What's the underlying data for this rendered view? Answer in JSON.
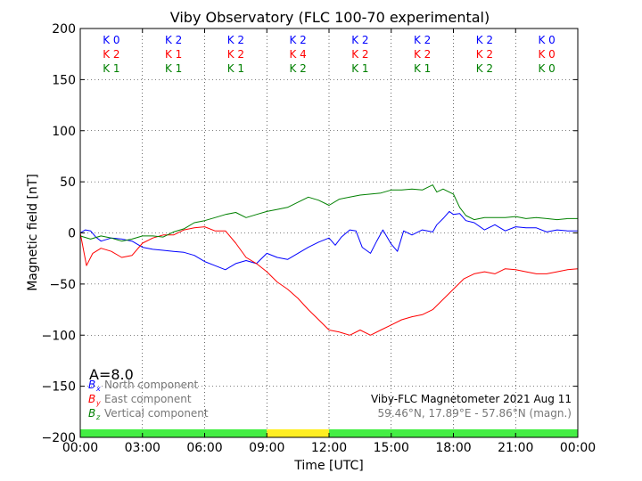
{
  "chart_data": {
    "type": "line",
    "title": "Viby Observatory (FLC 100-70 experimental)",
    "xlabel": "Time [UTC]",
    "ylabel": "Magnetic field [nT]",
    "ylim": [
      -200,
      200
    ],
    "xlim_hours": [
      0,
      24
    ],
    "grid": true,
    "x_ticks": [
      "00:00",
      "03:00",
      "06:00",
      "09:00",
      "12:00",
      "15:00",
      "18:00",
      "21:00",
      "00:00"
    ],
    "y_ticks": [
      200,
      150,
      100,
      50,
      0,
      -50,
      -100,
      -150,
      -200
    ],
    "k_indices": {
      "rows": [
        {
          "color": "#0000ff",
          "values": [
            "K 0",
            "K 2",
            "K 2",
            "K 2",
            "K 2",
            "K 2",
            "K 2",
            "K 0"
          ]
        },
        {
          "color": "#ff0000",
          "values": [
            "K 2",
            "K 1",
            "K 2",
            "K 4",
            "K 2",
            "K 2",
            "K 2",
            "K 0"
          ]
        },
        {
          "color": "#008000",
          "values": [
            "K 1",
            "K 1",
            "K 1",
            "K 2",
            "K 1",
            "K 1",
            "K 2",
            "K 0"
          ]
        }
      ]
    },
    "activity_bar": [
      {
        "from": 0,
        "to": 9,
        "color": "#44ee44"
      },
      {
        "from": 9,
        "to": 12,
        "color": "#ffee22"
      },
      {
        "from": 12,
        "to": 24,
        "color": "#44ee44"
      }
    ],
    "a_index": "A=8.0",
    "series": [
      {
        "symbol": "B",
        "subscript": "x",
        "name": "North component",
        "color": "#0000ff",
        "x": [
          0,
          0.25,
          0.5,
          0.75,
          1,
          1.5,
          2,
          2.5,
          3,
          3.5,
          4,
          4.5,
          5,
          5.5,
          6,
          6.5,
          7,
          7.5,
          8,
          8.5,
          9,
          9.5,
          10,
          10.5,
          11,
          11.5,
          12,
          12.3,
          12.6,
          13,
          13.3,
          13.6,
          14,
          14.3,
          14.6,
          15,
          15.3,
          15.6,
          16,
          16.5,
          17,
          17.2,
          17.5,
          17.8,
          18,
          18.3,
          18.6,
          19,
          19.5,
          20,
          20.5,
          21,
          21.5,
          22,
          22.5,
          23,
          23.5,
          24
        ],
        "y": [
          0,
          3,
          2,
          -4,
          -8,
          -5,
          -6,
          -8,
          -14,
          -16,
          -17,
          -18,
          -19,
          -22,
          -28,
          -32,
          -36,
          -30,
          -27,
          -30,
          -20,
          -24,
          -26,
          -20,
          -14,
          -9,
          -5,
          -12,
          -4,
          3,
          2,
          -14,
          -20,
          -8,
          3,
          -11,
          -18,
          2,
          -2,
          3,
          1,
          8,
          14,
          21,
          18,
          19,
          12,
          10,
          3,
          8,
          2,
          6,
          5,
          5,
          1,
          3,
          2,
          2
        ]
      },
      {
        "symbol": "B",
        "subscript": "y",
        "name": "East component",
        "color": "#ff0000",
        "x": [
          0,
          0.3,
          0.6,
          1,
          1.5,
          2,
          2.5,
          3,
          3.5,
          4,
          4.5,
          5,
          5.5,
          6,
          6.5,
          7,
          7.5,
          8,
          8.5,
          9,
          9.5,
          10,
          10.5,
          11,
          11.5,
          12,
          12.5,
          13,
          13.5,
          14,
          14.5,
          15,
          15.5,
          16,
          16.5,
          17,
          17.5,
          18,
          18.5,
          19,
          19.5,
          20,
          20.5,
          21,
          21.5,
          22,
          22.5,
          23,
          23.5,
          24
        ],
        "y": [
          0,
          -32,
          -20,
          -15,
          -18,
          -24,
          -22,
          -10,
          -5,
          -2,
          -2,
          3,
          5,
          6,
          2,
          2,
          -10,
          -24,
          -30,
          -38,
          -48,
          -55,
          -64,
          -75,
          -85,
          -95,
          -97,
          -100,
          -95,
          -100,
          -95,
          -90,
          -85,
          -82,
          -80,
          -75,
          -65,
          -55,
          -45,
          -40,
          -38,
          -40,
          -35,
          -36,
          -38,
          -40,
          -40,
          -38,
          -36,
          -35
        ]
      },
      {
        "symbol": "B",
        "subscript": "z",
        "name": "Vertical component",
        "color": "#008000",
        "x": [
          0,
          0.5,
          1,
          1.5,
          2,
          2.5,
          3,
          3.5,
          4,
          4.5,
          5,
          5.5,
          6,
          6.5,
          7,
          7.5,
          8,
          8.5,
          9,
          9.5,
          10,
          10.5,
          11,
          11.5,
          12,
          12.5,
          13,
          13.5,
          14,
          14.5,
          15,
          15.5,
          16,
          16.5,
          17,
          17.2,
          17.5,
          18,
          18.3,
          18.6,
          19,
          19.5,
          20,
          20.5,
          21,
          21.5,
          22,
          22.5,
          23,
          23.5,
          24
        ],
        "y": [
          -3,
          -6,
          -3,
          -5,
          -8,
          -6,
          -3,
          -3,
          -4,
          1,
          4,
          10,
          12,
          15,
          18,
          20,
          15,
          18,
          21,
          23,
          25,
          30,
          35,
          32,
          27,
          33,
          35,
          37,
          38,
          39,
          42,
          42,
          43,
          42,
          47,
          40,
          43,
          38,
          25,
          17,
          13,
          15,
          15,
          15,
          16,
          14,
          15,
          14,
          13,
          14,
          14
        ]
      }
    ],
    "station_info": {
      "line1": "Viby-FLC Magnetometer 2021 Aug 11",
      "line2": "59.46°N, 17.89°E - 57.86°N (magn.)"
    }
  }
}
